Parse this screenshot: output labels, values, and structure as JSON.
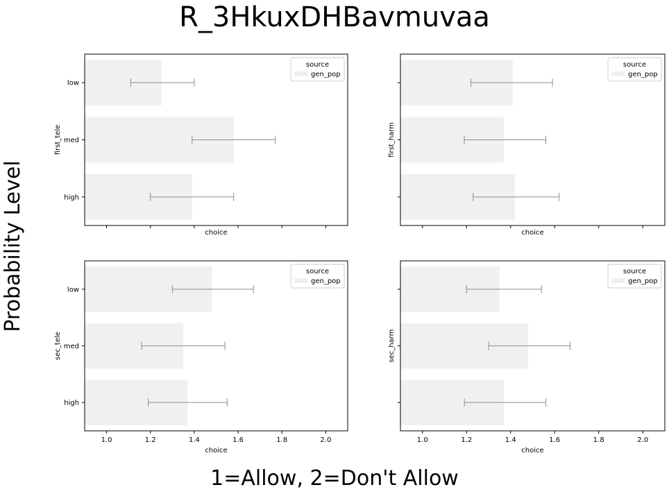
{
  "figure": {
    "title": "R_3HkuxDHBavmuvaa",
    "xlabel": "1=Allow, 2=Don't Allow",
    "ylabel": "Probability Level"
  },
  "colors": {
    "bar": "#f0f0f0",
    "errorbar": "#8c8c8c",
    "axis": "#000000",
    "legend_border": "#cccccc"
  },
  "chart_data": [
    {
      "type": "bar",
      "orientation": "horizontal",
      "categories": [
        "low",
        "med",
        "high"
      ],
      "series": [
        {
          "name": "gen_pop",
          "values": [
            1.25,
            1.58,
            1.39
          ],
          "ci_low": [
            1.11,
            1.39,
            1.2
          ],
          "ci_high": [
            1.4,
            1.77,
            1.58
          ]
        }
      ],
      "xlabel": "choice",
      "ylabel": "first_tele",
      "xlim": [
        0.9,
        2.1
      ],
      "xticks": [
        1.0,
        1.2,
        1.4,
        1.6,
        1.8,
        2.0
      ],
      "show_xtick_labels": false,
      "show_ytick_labels": true,
      "legend": {
        "title": "source",
        "position": "top-right"
      }
    },
    {
      "type": "bar",
      "orientation": "horizontal",
      "categories": [
        "low",
        "med",
        "high"
      ],
      "series": [
        {
          "name": "gen_pop",
          "values": [
            1.41,
            1.37,
            1.42
          ],
          "ci_low": [
            1.22,
            1.19,
            1.23
          ],
          "ci_high": [
            1.59,
            1.56,
            1.62
          ]
        }
      ],
      "xlabel": "choice",
      "ylabel": "first_harm",
      "xlim": [
        0.9,
        2.1
      ],
      "xticks": [
        1.0,
        1.2,
        1.4,
        1.6,
        1.8,
        2.0
      ],
      "show_xtick_labels": false,
      "show_ytick_labels": false,
      "legend": {
        "title": "source",
        "position": "top-right"
      }
    },
    {
      "type": "bar",
      "orientation": "horizontal",
      "categories": [
        "low",
        "med",
        "high"
      ],
      "series": [
        {
          "name": "gen_pop",
          "values": [
            1.48,
            1.35,
            1.37
          ],
          "ci_low": [
            1.3,
            1.16,
            1.19
          ],
          "ci_high": [
            1.67,
            1.54,
            1.55
          ]
        }
      ],
      "xlabel": "choice",
      "ylabel": "sec_tele",
      "xlim": [
        0.9,
        2.1
      ],
      "xticks": [
        1.0,
        1.2,
        1.4,
        1.6,
        1.8,
        2.0
      ],
      "xtick_labels": [
        "1.0",
        "1.2",
        "1.4",
        "1.6",
        "1.8",
        "2.0"
      ],
      "show_xtick_labels": true,
      "show_ytick_labels": true,
      "legend": {
        "title": "source",
        "position": "top-right"
      }
    },
    {
      "type": "bar",
      "orientation": "horizontal",
      "categories": [
        "low",
        "med",
        "high"
      ],
      "series": [
        {
          "name": "gen_pop",
          "values": [
            1.35,
            1.48,
            1.37
          ],
          "ci_low": [
            1.2,
            1.3,
            1.19
          ],
          "ci_high": [
            1.54,
            1.67,
            1.56
          ]
        }
      ],
      "xlabel": "choice",
      "ylabel": "sec_harm",
      "xlim": [
        0.9,
        2.1
      ],
      "xticks": [
        1.0,
        1.2,
        1.4,
        1.6,
        1.8,
        2.0
      ],
      "xtick_labels": [
        "1.0",
        "1.2",
        "1.4",
        "1.6",
        "1.8",
        "2.0"
      ],
      "show_xtick_labels": true,
      "show_ytick_labels": false,
      "legend": {
        "title": "source",
        "position": "top-right"
      }
    }
  ]
}
